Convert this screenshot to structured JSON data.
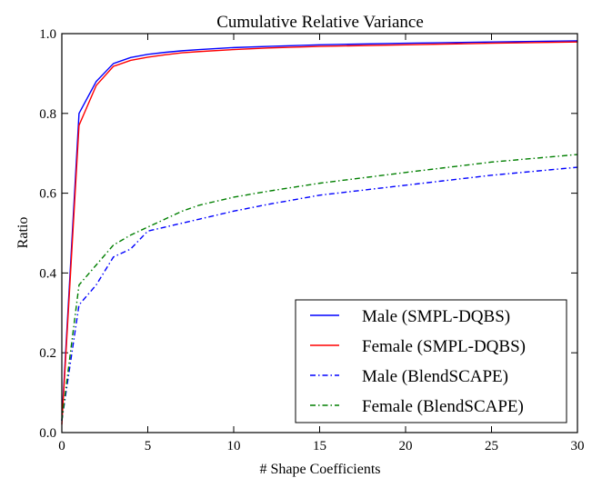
{
  "chart_data": {
    "type": "line",
    "title": "Cumulative Relative Variance",
    "xlabel": "# Shape Coefficients",
    "ylabel": "Ratio",
    "xlim": [
      0,
      30
    ],
    "ylim": [
      0.0,
      1.0
    ],
    "xticks": [
      "0",
      "5",
      "10",
      "15",
      "20",
      "25",
      "30"
    ],
    "yticks": [
      "0.0",
      "0.2",
      "0.4",
      "0.6",
      "0.8",
      "1.0"
    ],
    "grid": false,
    "legend_position": "bottom-right",
    "x": [
      0,
      1,
      2,
      3,
      4,
      5,
      6,
      7,
      8,
      10,
      12,
      15,
      20,
      25,
      30
    ],
    "series": [
      {
        "name": "Male (SMPL-DQBS)",
        "color": "#0000ff",
        "style": "solid",
        "values": [
          0.03,
          0.8,
          0.88,
          0.925,
          0.94,
          0.948,
          0.953,
          0.957,
          0.96,
          0.965,
          0.968,
          0.972,
          0.976,
          0.979,
          0.982
        ]
      },
      {
        "name": "Female (SMPL-DQBS)",
        "color": "#ff0000",
        "style": "solid",
        "values": [
          0.02,
          0.77,
          0.87,
          0.918,
          0.933,
          0.941,
          0.947,
          0.952,
          0.955,
          0.96,
          0.964,
          0.968,
          0.972,
          0.976,
          0.979
        ]
      },
      {
        "name": "Male (BlendSCAPE)",
        "color": "#0000ff",
        "style": "dashdot",
        "values": [
          0.03,
          0.32,
          0.37,
          0.44,
          0.46,
          0.505,
          0.515,
          0.525,
          0.535,
          0.555,
          0.572,
          0.595,
          0.62,
          0.645,
          0.665
        ]
      },
      {
        "name": "Female (BlendSCAPE)",
        "color": "#007f00",
        "style": "dashdot",
        "values": [
          0.03,
          0.37,
          0.42,
          0.47,
          0.495,
          0.515,
          0.535,
          0.555,
          0.57,
          0.59,
          0.605,
          0.625,
          0.652,
          0.678,
          0.697
        ]
      }
    ]
  }
}
